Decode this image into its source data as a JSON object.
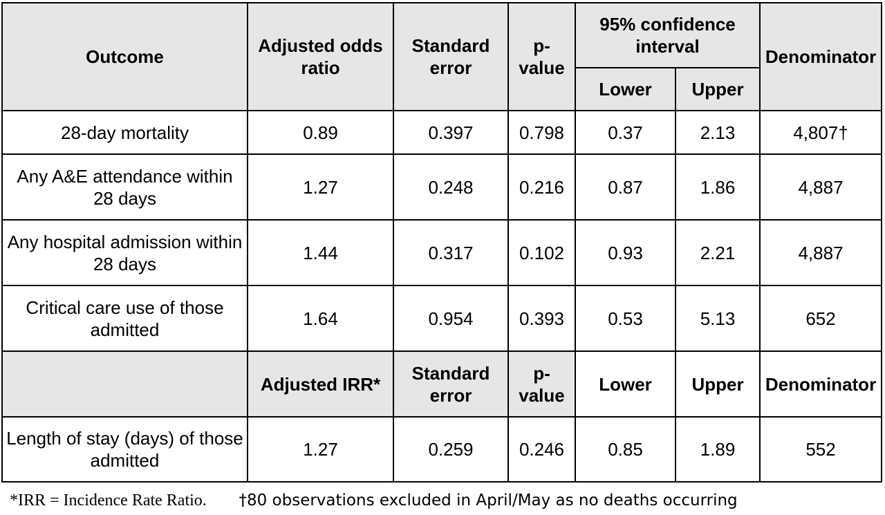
{
  "header1": {
    "outcome": "Outcome",
    "adjusted_odds_ratio": "Adjusted odds ratio",
    "standard_error": "Standard error",
    "p_value": "p-value",
    "ci": "95% confidence interval",
    "lower": "Lower",
    "upper": "Upper",
    "denominator": "Denominator"
  },
  "rows1": [
    {
      "outcome": "28-day mortality",
      "aor": "0.89",
      "se": "0.397",
      "p": "0.798",
      "lower": "0.37",
      "upper": "2.13",
      "denom": "4,807†"
    },
    {
      "outcome": "Any A&E attendance within 28 days",
      "aor": "1.27",
      "se": "0.248",
      "p": "0.216",
      "lower": "0.87",
      "upper": "1.86",
      "denom": "4,887"
    },
    {
      "outcome": "Any hospital admission within 28 days",
      "aor": "1.44",
      "se": "0.317",
      "p": "0.102",
      "lower": "0.93",
      "upper": "2.21",
      "denom": "4,887"
    },
    {
      "outcome": "Critical care use of those admitted",
      "aor": "1.64",
      "se": "0.954",
      "p": "0.393",
      "lower": "0.53",
      "upper": "5.13",
      "denom": "652"
    }
  ],
  "header2": {
    "outcome": "",
    "adjusted_irr": "Adjusted IRR*",
    "standard_error": "Standard error",
    "p_value": "p-value",
    "lower": "Lower",
    "upper": "Upper",
    "denominator": "Denominator"
  },
  "rows2": [
    {
      "outcome": "Length of stay (days) of those admitted",
      "irr": "1.27",
      "se": "0.259",
      "p": "0.246",
      "lower": "0.85",
      "upper": "1.89",
      "denom": "552"
    }
  ],
  "footnotes": {
    "irr": "*IRR = Incidence Rate Ratio.",
    "dagger": "†80 observations excluded in April/May as no deaths occurring"
  }
}
